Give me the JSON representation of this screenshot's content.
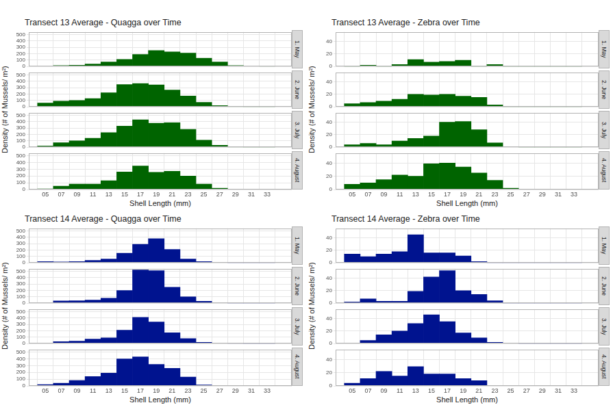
{
  "chart_data": [
    {
      "type": "bar",
      "title": "Transect 13 Average - Quagga over Time",
      "x_label": "Shell Length (mm)",
      "y_label": "Density (# of Mussels/ m²)",
      "bins": [
        4,
        6,
        8,
        10,
        12,
        14,
        16,
        18,
        20,
        22,
        24,
        26,
        28,
        30,
        32,
        34
      ],
      "xlim": [
        4,
        35
      ],
      "xticks": [
        {
          "value": 5,
          "label": "05"
        },
        {
          "value": 7,
          "label": "07"
        },
        {
          "value": 9,
          "label": "09"
        },
        11,
        13,
        15,
        17,
        19,
        21,
        23,
        25,
        27,
        29,
        31,
        33
      ],
      "ylim": [
        0,
        540
      ],
      "yticks": [
        0,
        100,
        200,
        300,
        400,
        500
      ],
      "grid": true,
      "color": "#006400",
      "series": [
        {
          "name": "1. May",
          "values": [
            10,
            15,
            20,
            40,
            70,
            110,
            190,
            250,
            230,
            210,
            130,
            70,
            15,
            5,
            2
          ]
        },
        {
          "name": "2. June",
          "values": [
            60,
            90,
            100,
            130,
            220,
            350,
            365,
            345,
            265,
            170,
            70,
            20,
            3,
            0,
            0
          ]
        },
        {
          "name": "3. July",
          "values": [
            20,
            70,
            100,
            140,
            230,
            330,
            430,
            375,
            385,
            280,
            110,
            30,
            3,
            0,
            0
          ]
        },
        {
          "name": "4. August",
          "values": [
            10,
            50,
            80,
            80,
            130,
            260,
            350,
            255,
            270,
            200,
            80,
            20,
            2,
            0,
            0
          ]
        }
      ]
    },
    {
      "type": "bar",
      "title": "Transect 13 Average - Zebra over Time",
      "x_label": "Shell Length (mm)",
      "y_label": "Density (# of Mussels/ m²)",
      "bins": [
        4,
        6,
        8,
        10,
        12,
        14,
        16,
        18,
        20,
        22,
        24,
        26,
        28,
        30,
        32,
        34
      ],
      "xlim": [
        4,
        35
      ],
      "xticks": [
        {
          "value": 5,
          "label": "05"
        },
        {
          "value": 7,
          "label": "07"
        },
        {
          "value": 9,
          "label": "09"
        },
        11,
        13,
        15,
        17,
        19,
        21,
        23,
        25,
        27,
        29,
        31,
        33
      ],
      "ylim": [
        0,
        55
      ],
      "yticks": [
        0,
        20,
        40
      ],
      "grid": true,
      "color": "#006400",
      "series": [
        {
          "name": "1. May",
          "values": [
            0,
            2,
            0,
            3,
            11,
            7,
            8,
            10,
            0,
            3,
            0,
            0,
            0,
            0,
            0
          ]
        },
        {
          "name": "2. June",
          "values": [
            5,
            7,
            9,
            12,
            20,
            19,
            20,
            17,
            15,
            3,
            0,
            0,
            0,
            0,
            0
          ]
        },
        {
          "name": "3. July",
          "values": [
            4,
            6,
            4,
            10,
            14,
            18,
            40,
            41,
            28,
            7,
            1,
            0,
            0,
            0,
            0
          ]
        },
        {
          "name": "4. August",
          "values": [
            8,
            10,
            15,
            22,
            20,
            39,
            40,
            34,
            25,
            14,
            2,
            0,
            0,
            0,
            0
          ]
        }
      ]
    },
    {
      "type": "bar",
      "title": "Transect 14 Average - Quagga over Time",
      "x_label": "Shell Length (mm)",
      "y_label": "Density (# of Mussels/ m²)",
      "bins": [
        4,
        6,
        8,
        10,
        12,
        14,
        16,
        18,
        20,
        22,
        24,
        26,
        28,
        30,
        32,
        34
      ],
      "xlim": [
        4,
        35
      ],
      "xticks": [
        {
          "value": 5,
          "label": "05"
        },
        {
          "value": 7,
          "label": "07"
        },
        {
          "value": 9,
          "label": "09"
        },
        11,
        13,
        15,
        17,
        19,
        21,
        23,
        25,
        27,
        29,
        31,
        33
      ],
      "ylim": [
        0,
        540
      ],
      "yticks": [
        0,
        100,
        200,
        300,
        400,
        500
      ],
      "grid": true,
      "color": "#00138f",
      "series": [
        {
          "name": "1. May",
          "values": [
            20,
            15,
            20,
            40,
            60,
            150,
            290,
            380,
            210,
            60,
            20,
            5,
            0,
            0,
            0
          ]
        },
        {
          "name": "2. June",
          "values": [
            10,
            35,
            40,
            50,
            80,
            200,
            520,
            510,
            250,
            100,
            30,
            5,
            0,
            0,
            0
          ]
        },
        {
          "name": "3. July",
          "values": [
            10,
            30,
            40,
            70,
            90,
            210,
            410,
            340,
            170,
            80,
            20,
            5,
            2,
            0,
            0
          ]
        },
        {
          "name": "4. August",
          "values": [
            20,
            40,
            80,
            140,
            190,
            400,
            430,
            320,
            260,
            130,
            15,
            5,
            0,
            0,
            0
          ]
        }
      ]
    },
    {
      "type": "bar",
      "title": "Transect 14 Average - Zebra over Time",
      "x_label": "Shell Length (mm)",
      "y_label": "Density (# of Mussels/ m²)",
      "bins": [
        4,
        6,
        8,
        10,
        12,
        14,
        16,
        18,
        20,
        22,
        24,
        26,
        28,
        30,
        32,
        34
      ],
      "xlim": [
        4,
        35
      ],
      "xticks": [
        {
          "value": 5,
          "label": "05"
        },
        {
          "value": 7,
          "label": "07"
        },
        {
          "value": 9,
          "label": "09"
        },
        11,
        13,
        15,
        17,
        19,
        21,
        23,
        25,
        27,
        29,
        31,
        33
      ],
      "ylim": [
        0,
        55
      ],
      "yticks": [
        0,
        20,
        40
      ],
      "grid": true,
      "color": "#00138f",
      "series": [
        {
          "name": "1. May",
          "values": [
            14,
            10,
            14,
            18,
            45,
            16,
            16,
            11,
            2,
            0,
            0,
            0,
            0,
            0,
            0
          ]
        },
        {
          "name": "2. June",
          "values": [
            2,
            7,
            3,
            3,
            19,
            42,
            52,
            20,
            14,
            4,
            0,
            0,
            0,
            0,
            0
          ]
        },
        {
          "name": "3. July",
          "values": [
            1,
            5,
            14,
            20,
            32,
            46,
            35,
            17,
            9,
            2,
            1,
            0,
            0,
            0,
            0
          ]
        },
        {
          "name": "4. August",
          "values": [
            4,
            11,
            22,
            15,
            29,
            18,
            18,
            11,
            8,
            0,
            0,
            0,
            0,
            0,
            0
          ]
        }
      ]
    }
  ]
}
